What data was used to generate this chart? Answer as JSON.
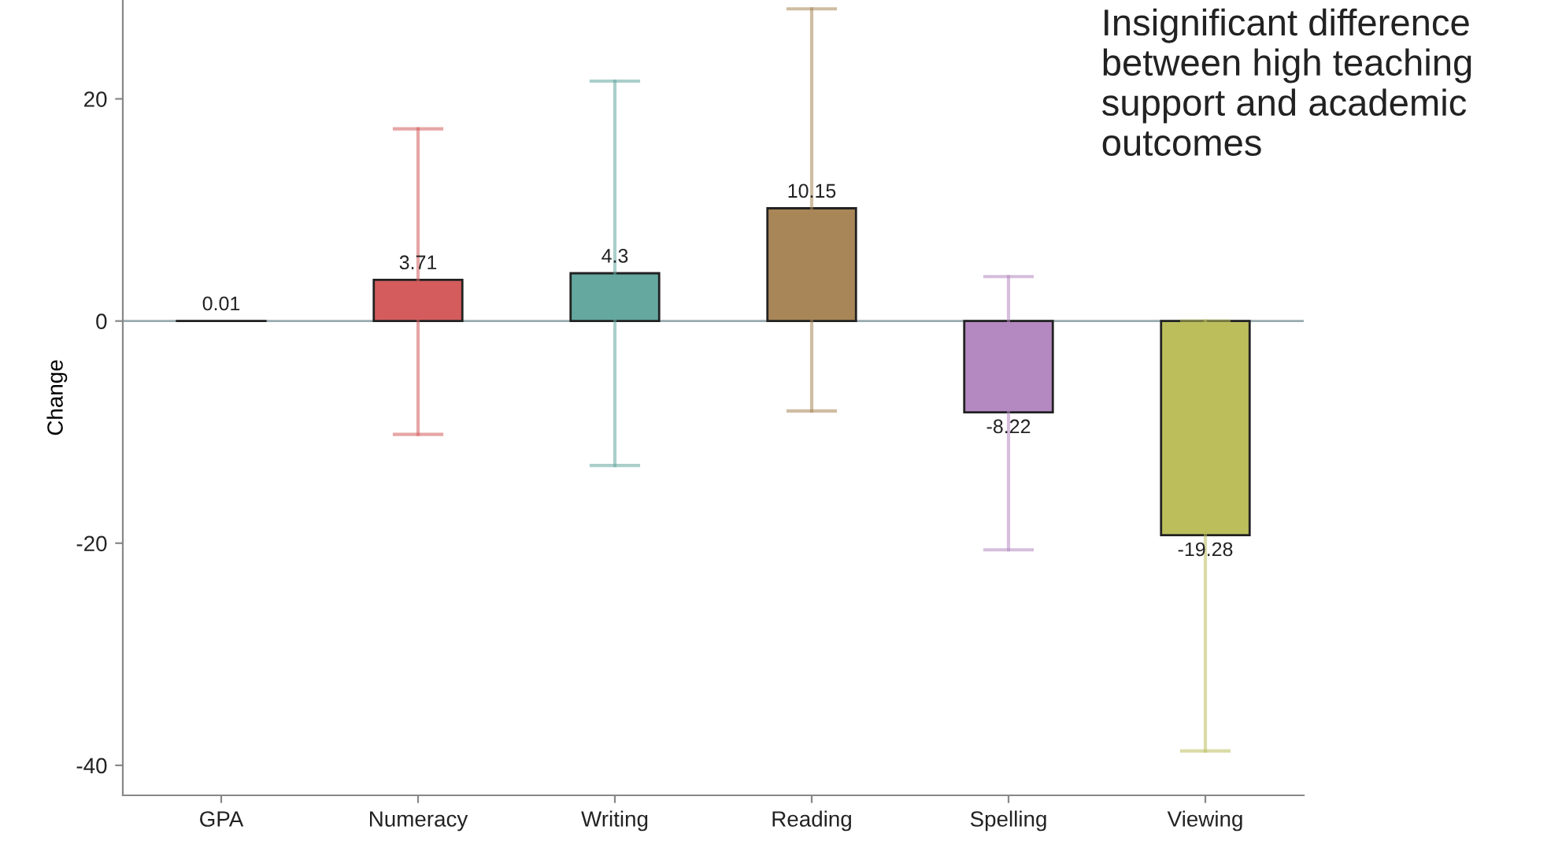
{
  "chart_data": {
    "type": "bar",
    "ylabel": "Change",
    "categories": [
      "GPA",
      "Numeracy",
      "Writing",
      "Reading",
      "Spelling",
      "Viewing"
    ],
    "values": [
      0.01,
      3.71,
      4.3,
      10.15,
      -8.22,
      -19.28
    ],
    "colors": [
      "#8899cc",
      "#d45c5c",
      "#64a8a0",
      "#a88658",
      "#b488c0",
      "#bcbe5c"
    ],
    "errors": [
      null,
      [
        -10.2,
        17.3
      ],
      [
        -13.0,
        21.6
      ],
      [
        -8.1,
        28.1
      ],
      [
        -20.6,
        4.0
      ],
      [
        -38.7,
        0.0
      ]
    ],
    "ylim": [
      -42.7,
      28.9
    ],
    "yticks": [
      -40,
      -20,
      0,
      20
    ],
    "ref_lines": [
      {
        "axis": "y",
        "value": 0,
        "color": "#9aabb0"
      }
    ],
    "data_labels": true,
    "grid": false,
    "legend": false,
    "annotations": [
      "Insignificant difference between high teaching support and academic outcomes"
    ]
  }
}
